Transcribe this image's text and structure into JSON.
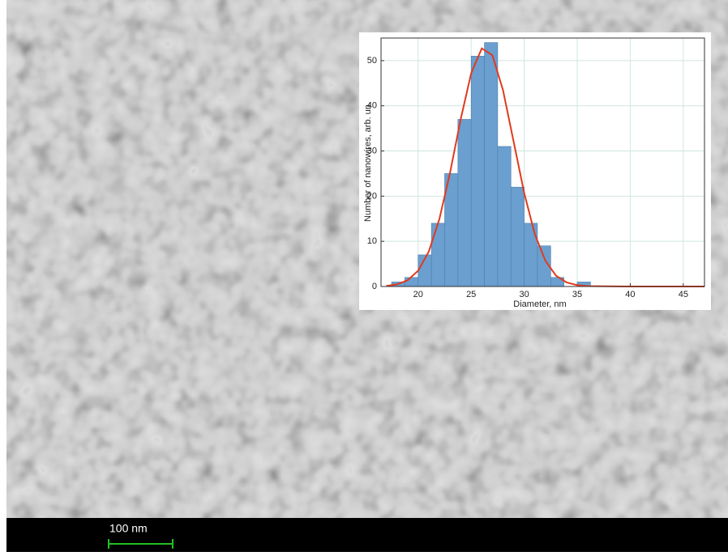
{
  "chart_data": {
    "type": "histogram",
    "xlabel": "Diameter, nm",
    "ylabel": "Number of nanowires, arb. un.",
    "bins": [
      17.5,
      18.75,
      20,
      21.25,
      22.5,
      23.75,
      25,
      26.25,
      27.5,
      28.75,
      30,
      31.25,
      32.5,
      33.75,
      35,
      36.25
    ],
    "values": [
      1,
      2,
      7,
      14,
      25,
      37,
      51,
      54,
      31,
      22,
      14,
      9,
      2,
      0,
      1
    ],
    "color": "#6a9fcf",
    "fit": {
      "x": [
        17,
        18,
        19,
        20,
        21,
        22,
        23,
        24,
        25,
        26,
        27,
        28,
        29,
        30,
        31,
        32,
        33,
        34,
        35,
        36,
        40,
        47
      ],
      "values": [
        0.14,
        0.47,
        1.37,
        3.5,
        7.7,
        14.9,
        25.1,
        36.9,
        47.2,
        52.7,
        51.2,
        43.5,
        32.1,
        20.7,
        11.6,
        5.7,
        2.4,
        0.9,
        0.3,
        0.1,
        0,
        0
      ],
      "color": "#e03a1e"
    },
    "xlim": [
      16.5,
      47
    ],
    "ylim": [
      0,
      55
    ],
    "xticks": [
      20,
      25,
      30,
      35,
      40,
      45
    ],
    "yticks": [
      0,
      10,
      20,
      30,
      40,
      50
    ],
    "grid": true
  },
  "scale_bar": {
    "label": "100 nm"
  }
}
